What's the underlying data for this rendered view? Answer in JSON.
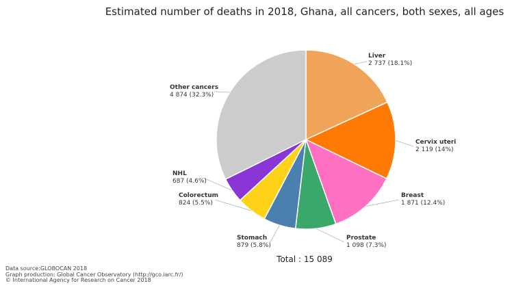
{
  "chart_data": {
    "type": "pie",
    "title": "Estimated number of deaths in 2018, Ghana, all cancers, both sexes, all ages",
    "slices": [
      {
        "name": "Liver",
        "value": 2737,
        "value_label": "2 737 (18.1%)",
        "color": "#f0a45a"
      },
      {
        "name": "Cervix uteri",
        "value": 2119,
        "value_label": "2 119 (14%)",
        "color": "#ff7a05"
      },
      {
        "name": "Breast",
        "value": 1871,
        "value_label": "1 871 (12.4%)",
        "color": "#ff6fc2"
      },
      {
        "name": "Prostate",
        "value": 1098,
        "value_label": "1 098 (7.3%)",
        "color": "#3aa86b"
      },
      {
        "name": "Stomach",
        "value": 879,
        "value_label": "879 (5.8%)",
        "color": "#4a7fb0"
      },
      {
        "name": "Colorectum",
        "value": 824,
        "value_label": "824 (5.5%)",
        "color": "#ffd21a"
      },
      {
        "name": "NHL",
        "value": 687,
        "value_label": "687 (4.6%)",
        "color": "#8a35d6"
      },
      {
        "name": "Other cancers",
        "value": 4874,
        "value_label": "4 874 (32.3%)",
        "color": "#cccccc"
      }
    ],
    "total_label": "Total : 15 089"
  },
  "source": {
    "line1": "Data source:GLOBOCAN 2018",
    "line2": "Graph production: Global Cancer Observatory (http://gco.iarc.fr/)",
    "line3": "© International Agency for Research on Cancer 2018"
  }
}
